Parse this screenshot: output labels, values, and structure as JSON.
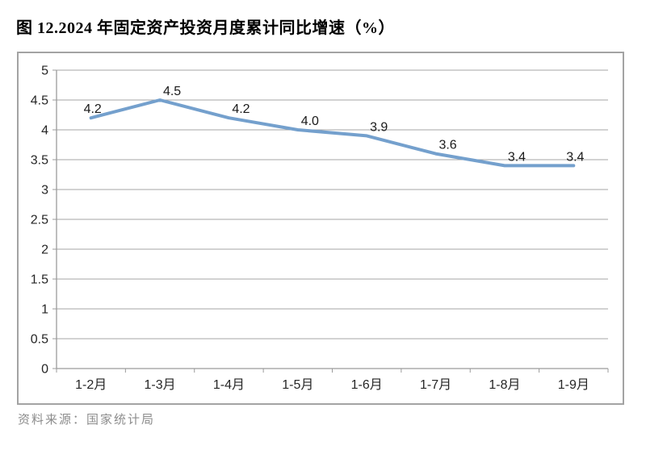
{
  "figure": {
    "title": "图 12.2024 年固定资产投资月度累计同比增速（%）",
    "source": "资料来源：国家统计局"
  },
  "chart_data": {
    "type": "line",
    "title": "",
    "xlabel": "",
    "ylabel": "",
    "categories": [
      "1-2月",
      "1-3月",
      "1-4月",
      "1-5月",
      "1-6月",
      "1-7月",
      "1-8月",
      "1-9月"
    ],
    "values": [
      4.2,
      4.5,
      4.2,
      4.0,
      3.9,
      3.6,
      3.4,
      3.4
    ],
    "data_labels": [
      "4.2",
      "4.5",
      "4.2",
      "4.0",
      "3.9",
      "3.6",
      "3.4",
      "3.4"
    ],
    "ylim": [
      0,
      5
    ],
    "ytick_step": 0.5,
    "ytick_labels": [
      "0",
      "0.5",
      "1",
      "1.5",
      "2",
      "2.5",
      "3",
      "3.5",
      "4",
      "4.5",
      "5"
    ],
    "grid": true,
    "legend": false,
    "colors": {
      "line": "#74a0cd",
      "grid": "#a6a6a6",
      "axis": "#9b9b9b",
      "tick_label": "#262626",
      "data_label": "#1a1a1a",
      "frame_border": "#a3a3a3"
    }
  }
}
